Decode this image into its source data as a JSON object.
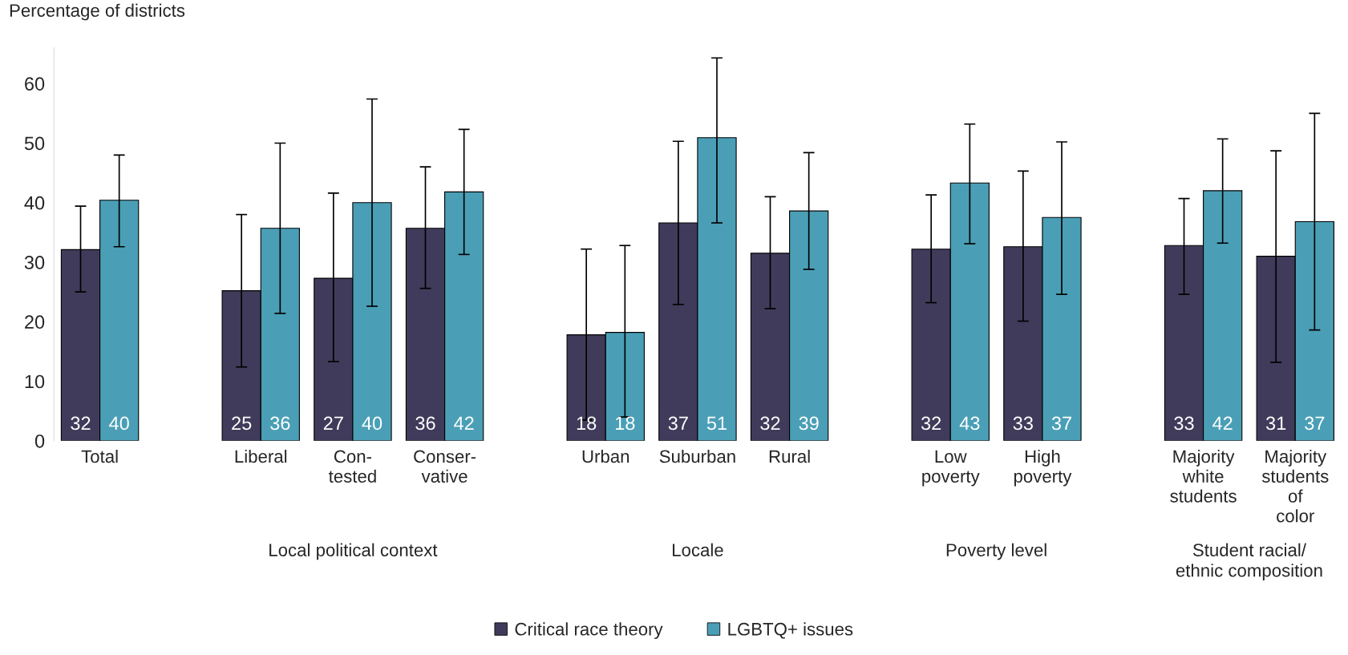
{
  "chart_data": {
    "type": "bar",
    "ylabel": "Percentage of districts",
    "categories": [
      "Total",
      "Liberal",
      "Con-\ntested",
      "Conser-\nvative",
      "Urban",
      "Suburban",
      "Rural",
      "Low\npoverty",
      "High\npoverty",
      "Majority\nwhite\nstudents",
      "Majority\nstudents\nof\ncolor"
    ],
    "series": [
      {
        "name": "Critical race theory",
        "color": "#403b5a",
        "values": [
          32.1,
          25.2,
          27.3,
          35.7,
          17.8,
          36.6,
          31.5,
          32.2,
          32.6,
          32.8,
          31.0
        ],
        "errors": [
          [
            25.0,
            39.4
          ],
          [
            12.4,
            38.0
          ],
          [
            13.3,
            41.6
          ],
          [
            25.6,
            46.0
          ],
          [
            3.5,
            32.2
          ],
          [
            22.9,
            50.3
          ],
          [
            22.2,
            41.0
          ],
          [
            23.2,
            41.3
          ],
          [
            20.1,
            45.3
          ],
          [
            24.6,
            40.7
          ],
          [
            13.2,
            48.7
          ]
        ],
        "value_labels": [
          "32",
          "25",
          "27",
          "36",
          "18",
          "37",
          "32",
          "32",
          "33",
          "33",
          "31"
        ]
      },
      {
        "name": "LGBTQ+ issues",
        "color": "#4a9fb6",
        "values": [
          40.4,
          35.7,
          40.0,
          41.8,
          18.2,
          50.9,
          38.6,
          43.3,
          37.5,
          42.0,
          36.8
        ],
        "errors": [
          [
            32.6,
            48.0
          ],
          [
            21.4,
            50.0
          ],
          [
            22.6,
            57.4
          ],
          [
            31.3,
            52.3
          ],
          [
            4.0,
            32.8
          ],
          [
            36.6,
            64.3
          ],
          [
            28.8,
            48.4
          ],
          [
            33.1,
            53.2
          ],
          [
            24.6,
            50.2
          ],
          [
            33.2,
            50.7
          ],
          [
            18.6,
            55.0
          ]
        ],
        "value_labels": [
          "40",
          "36",
          "40",
          "42",
          "18",
          "51",
          "39",
          "43",
          "37",
          "42",
          "37"
        ]
      }
    ],
    "ylim": [
      0,
      66
    ],
    "yticks": [
      0,
      10,
      20,
      30,
      40,
      50,
      60
    ],
    "annotations": [
      "Local political context",
      "Locale",
      "Poverty level",
      "Student racial/\nethnic composition"
    ],
    "legend": "bottom",
    "grid": false
  }
}
